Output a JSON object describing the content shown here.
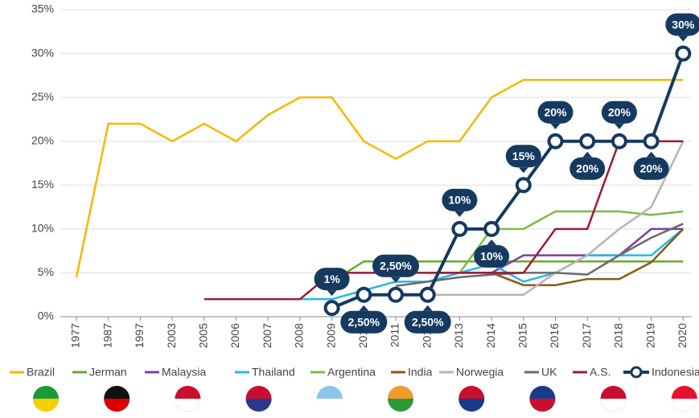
{
  "chart_data": {
    "type": "line",
    "categories": [
      "1977",
      "1987",
      "1997",
      "2003",
      "2005",
      "2006",
      "2007",
      "2008",
      "2009",
      "2010",
      "2011",
      "2012",
      "2013",
      "2014",
      "2015",
      "2016",
      "2017",
      "2018",
      "2019",
      "2020"
    ],
    "ylim": [
      0,
      35
    ],
    "yticks": [
      {
        "value": 0,
        "label": "0%"
      },
      {
        "value": 5,
        "label": "5%"
      },
      {
        "value": 10,
        "label": "10%"
      },
      {
        "value": 15,
        "label": "15%"
      },
      {
        "value": 20,
        "label": "20%"
      },
      {
        "value": 25,
        "label": "25%"
      },
      {
        "value": 30,
        "label": "30%"
      },
      {
        "value": 35,
        "label": "35%"
      }
    ],
    "grid": true,
    "legend": "bottom",
    "series": [
      {
        "name": "Brazil",
        "color": "#f5b800",
        "values": [
          4.5,
          22,
          22,
          20,
          22,
          20,
          23,
          25,
          25,
          20,
          18,
          20,
          20,
          25,
          27,
          27,
          27,
          27,
          27,
          27
        ]
      },
      {
        "name": "Jerman",
        "color": "#6aa92f",
        "values": [
          null,
          null,
          null,
          null,
          null,
          null,
          null,
          null,
          4,
          6.3,
          6.3,
          6.3,
          6.3,
          6.3,
          6.3,
          6.3,
          6.3,
          6.3,
          6.3,
          6.3
        ]
      },
      {
        "name": "Malaysia",
        "color": "#7b3fa0",
        "values": [
          null,
          null,
          null,
          null,
          null,
          null,
          null,
          null,
          null,
          null,
          null,
          5,
          5,
          5,
          7,
          7,
          7,
          7,
          10,
          10
        ]
      },
      {
        "name": "Thailand",
        "color": "#29b6e8",
        "values": [
          null,
          null,
          null,
          null,
          null,
          null,
          null,
          2,
          2,
          3,
          4,
          4,
          5,
          6,
          4,
          5,
          7,
          7,
          7,
          10
        ]
      },
      {
        "name": "Argentina",
        "color": "#7dba4a",
        "values": [
          null,
          null,
          null,
          null,
          null,
          null,
          null,
          null,
          null,
          null,
          null,
          null,
          5,
          10,
          10,
          12,
          12,
          12,
          11.6,
          12
        ]
      },
      {
        "name": "India",
        "color": "#8a5a14",
        "values": [
          null,
          null,
          null,
          null,
          null,
          null,
          null,
          null,
          null,
          null,
          null,
          null,
          null,
          5,
          3.6,
          3.6,
          4.3,
          4.3,
          6.2,
          10
        ]
      },
      {
        "name": "Norwegia",
        "color": "#b5b5b5",
        "values": [
          null,
          null,
          null,
          null,
          null,
          null,
          null,
          null,
          null,
          2.5,
          2.5,
          2.5,
          2.5,
          2.5,
          2.5,
          5,
          7,
          10,
          12.5,
          20
        ]
      },
      {
        "name": "UK",
        "color": "#6b6b6b",
        "values": [
          null,
          null,
          null,
          null,
          null,
          null,
          null,
          null,
          null,
          null,
          3.5,
          4,
          4.5,
          4.8,
          5,
          5,
          4.8,
          7,
          9,
          10.6
        ]
      },
      {
        "name": "A.S.",
        "color": "#9b1b3a",
        "values": [
          null,
          null,
          null,
          null,
          2,
          2,
          2,
          2,
          5,
          5,
          5,
          5,
          5,
          5,
          5,
          10,
          10,
          20,
          20,
          20
        ]
      },
      {
        "name": "Indonesia",
        "color": "#163a5f",
        "values": [
          null,
          null,
          null,
          null,
          null,
          null,
          null,
          null,
          1,
          2.5,
          2.5,
          2.5,
          10,
          10,
          15,
          20,
          20,
          20,
          20,
          30
        ],
        "value_labels": [
          null,
          null,
          null,
          null,
          null,
          null,
          null,
          null,
          "1%",
          "2,50%",
          "2,50%",
          "2,50%",
          "10%",
          "10%",
          "15%",
          "20%",
          "20%",
          "20%",
          "20%",
          "30%"
        ]
      }
    ]
  }
}
